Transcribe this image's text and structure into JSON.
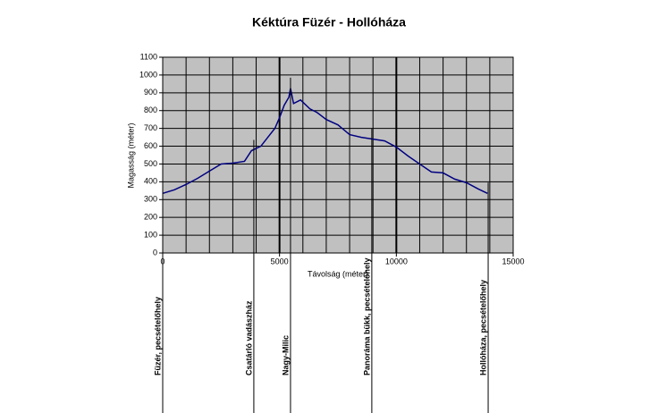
{
  "chart_data": {
    "type": "line",
    "title": "Kéktúra Füzér - Hollóháza",
    "x_label": "Távolság (méter)",
    "y_label": "Magasság (méter)",
    "x": [
      0,
      500,
      1000,
      1500,
      2000,
      2500,
      3000,
      3500,
      3800,
      4200,
      4500,
      4800,
      5000,
      5200,
      5400,
      5470,
      5600,
      5900,
      6300,
      6600,
      7000,
      7500,
      8000,
      8500,
      9000,
      9500,
      10000,
      10500,
      11000,
      11500,
      12000,
      12500,
      13000,
      13500,
      13900
    ],
    "series": [
      {
        "name": "Magasság",
        "color": "#000080",
        "values": [
          335,
          355,
          385,
          420,
          460,
          500,
          505,
          515,
          575,
          600,
          650,
          700,
          760,
          830,
          875,
          925,
          840,
          860,
          810,
          790,
          750,
          720,
          665,
          650,
          640,
          630,
          595,
          545,
          500,
          455,
          450,
          415,
          395,
          360,
          335
        ]
      }
    ],
    "xlim": [
      0,
      15000
    ],
    "xticks": [
      0,
      5000,
      10000,
      15000
    ],
    "x_gridlines": [
      1000,
      2000,
      3000,
      4000,
      5000,
      6000,
      7000,
      8000,
      9000,
      10000,
      11000,
      12000,
      13000,
      14000
    ],
    "ylim": [
      0,
      1100
    ],
    "yticks": [
      0,
      100,
      200,
      300,
      400,
      500,
      600,
      700,
      800,
      900,
      1000,
      1100
    ],
    "grid": true,
    "waypoints": [
      {
        "label": "Füzér, pecsételőhely",
        "x": 0
      },
      {
        "label": "Csatárló vadászház",
        "x": 3900
      },
      {
        "label": "Nagy-Milic",
        "x": 5470
      },
      {
        "label": "Panoráma bükk, pecsételőhely",
        "x": 8950
      },
      {
        "label": "Hollóháza, pecsételőhely",
        "x": 13930
      }
    ]
  }
}
